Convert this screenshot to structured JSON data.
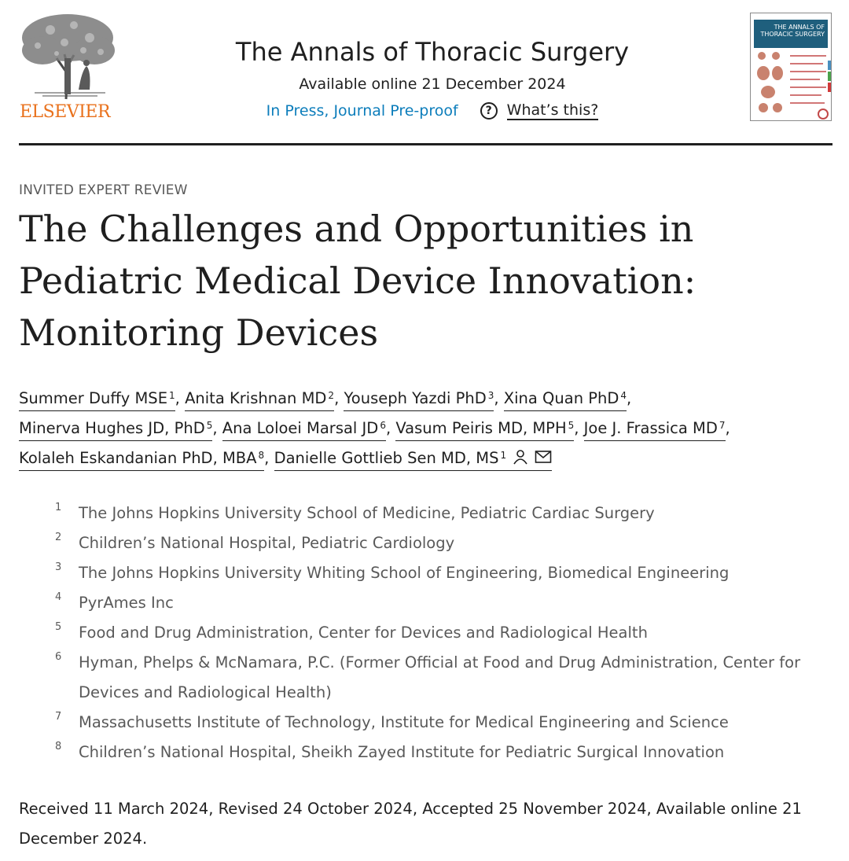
{
  "header": {
    "publisher": "ELSEVIER",
    "journal_title": "The Annals of Thoracic Surgery",
    "available_online": "Available online 21 December 2024",
    "status_link": "In Press, Journal Pre-proof",
    "whats_this": "What’s this?",
    "cover_title": "THE ANNALS OF THORACIC SURGERY"
  },
  "article": {
    "type": "INVITED EXPERT REVIEW",
    "title": "The Challenges and Opportunities in Pediatric Medical Device Innovation: Monitoring Devices"
  },
  "authors": [
    {
      "name": "Summer Duffy MSE",
      "aff": "1"
    },
    {
      "name": "Anita Krishnan MD",
      "aff": "2"
    },
    {
      "name": "Youseph Yazdi PhD",
      "aff": "3"
    },
    {
      "name": "Xina Quan PhD",
      "aff": "4"
    },
    {
      "name": "Minerva Hughes JD, PhD",
      "aff": "5"
    },
    {
      "name": "Ana Loloei Marsal JD",
      "aff": "6"
    },
    {
      "name": "Vasum Peiris MD, MPH",
      "aff": "5"
    },
    {
      "name": "Joe J. Frassica MD",
      "aff": "7"
    },
    {
      "name": "Kolaleh Eskandanian PhD, MBA",
      "aff": "8"
    },
    {
      "name": "Danielle Gottlieb Sen MD, MS",
      "aff": "1"
    }
  ],
  "affiliations": [
    {
      "num": "1",
      "text": "The Johns Hopkins University School of Medicine, Pediatric Cardiac Surgery"
    },
    {
      "num": "2",
      "text": "Children’s National Hospital, Pediatric Cardiology"
    },
    {
      "num": "3",
      "text": "The Johns Hopkins University Whiting School of Engineering, Biomedical Engineering"
    },
    {
      "num": "4",
      "text": "PyrAmes Inc"
    },
    {
      "num": "5",
      "text": "Food and Drug Administration, Center for Devices and Radiological Health"
    },
    {
      "num": "6",
      "text": "Hyman, Phelps & McNamara, P.C. (Former Official at Food and Drug Administration, Center for Devices and Radiological Health)"
    },
    {
      "num": "7",
      "text": "Massachusetts Institute of Technology, Institute for Medical Engineering and Science"
    },
    {
      "num": "8",
      "text": "Children’s National Hospital, Sheikh Zayed Institute for Pediatric Surgical Innovation"
    }
  ],
  "history": "Received 11 March 2024, Revised 24 October 2024, Accepted 25 November 2024, Available online 21 December 2024.",
  "icons": {
    "author_profile": "person-icon",
    "author_email": "envelope-icon",
    "help": "question-circle-icon"
  },
  "colors": {
    "publisher_orange": "#e9711c",
    "link_blue": "#0c7dbb",
    "text_dark": "#1f1f1f",
    "text_muted": "#595959"
  }
}
